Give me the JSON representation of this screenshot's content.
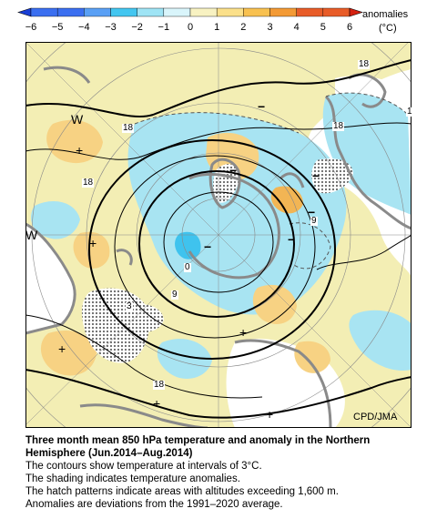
{
  "legend": {
    "title": "anomalies",
    "unit": "(°C)",
    "ticks": [
      "−6",
      "−5",
      "−4",
      "−3",
      "−2",
      "−1",
      "0",
      "1",
      "2",
      "3",
      "4",
      "5",
      "6"
    ],
    "colors": {
      "cold_end": "#1a3fd6",
      "cold": [
        "#3b6ff0",
        "#5aa0f5",
        "#43c6f0",
        "#9fe4f5",
        "#d9f5fb"
      ],
      "warm": [
        "#f8f2c2",
        "#fbe08a",
        "#f8c150",
        "#f39a35",
        "#e85c28"
      ],
      "warm_end": "#d42010"
    }
  },
  "map": {
    "colors": {
      "land": "#f3eeb4",
      "ocean_bg": "#ffffff",
      "cold_fill": "#a8e4f2",
      "cold_strong": "#3fc3ee",
      "warm_fill": "#f7d283",
      "warm_strong": "#f2b554",
      "coast": "#8a8a8a",
      "contour": "#000000",
      "grid": "#888888"
    },
    "contour_labels": [
      "18",
      "18",
      "18",
      "18",
      "9",
      "9",
      "3",
      "0",
      "18",
      "1"
    ],
    "anomaly_markers": [
      "+",
      "+",
      "+",
      "+",
      "+",
      "+",
      "−",
      "−",
      "−",
      "−",
      "−",
      "−"
    ],
    "high_low": [
      "W",
      "W"
    ]
  },
  "credit": "CPD/JMA",
  "caption": {
    "title": "Three month mean 850 hPa temperature and anomaly in the Northern Hemisphere (Jun.2014–Aug.2014)",
    "lines": [
      "The contours show temperature at intervals of 3°C.",
      "The shading indicates temperature anomalies.",
      "The hatch patterns indicate areas with altitudes exceeding 1,600 m.",
      "Anomalies are deviations from the 1991–2020 average."
    ]
  }
}
